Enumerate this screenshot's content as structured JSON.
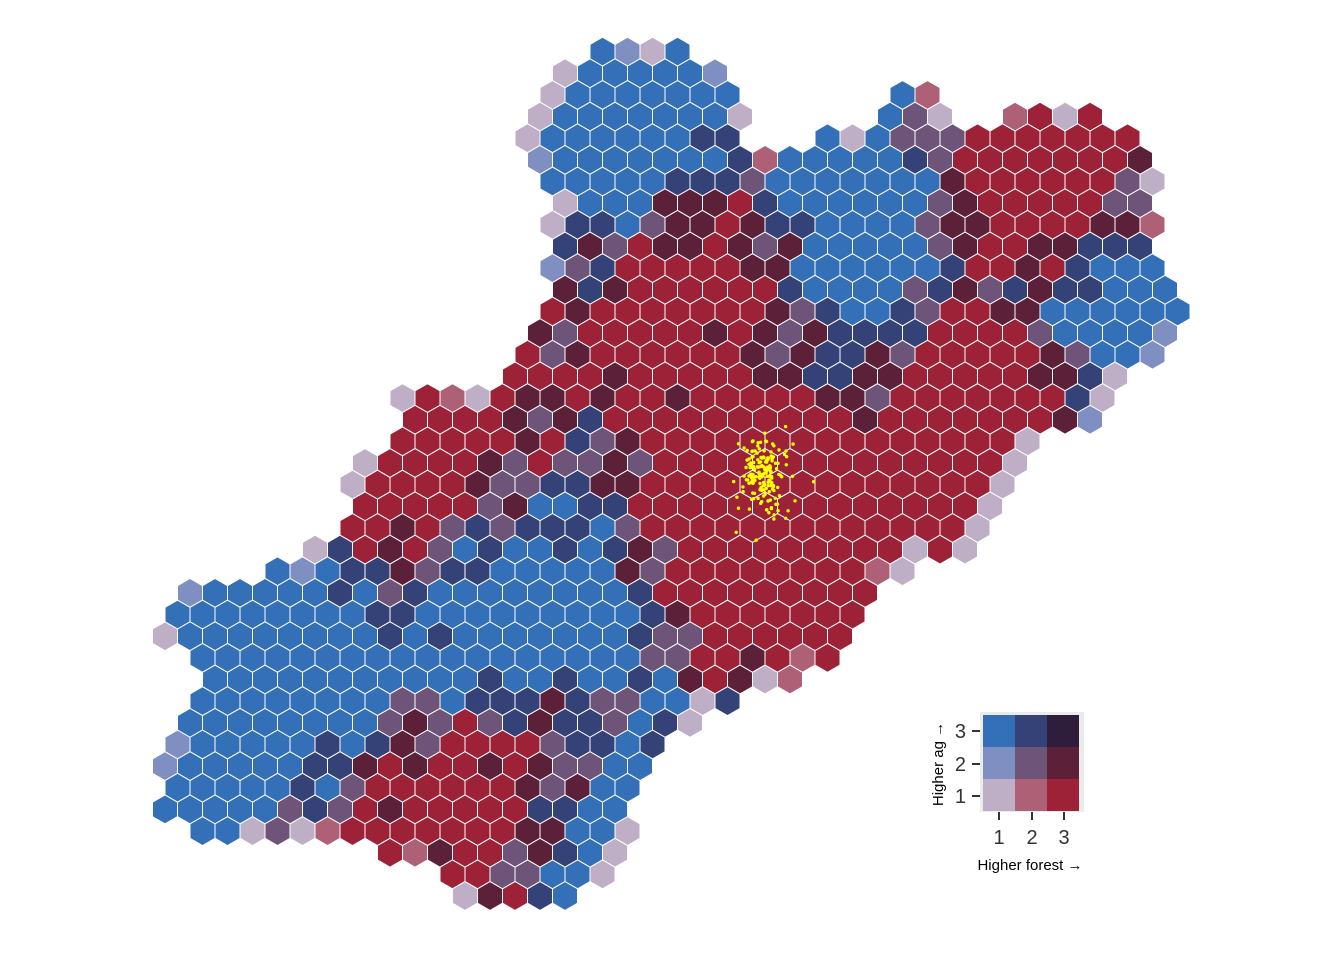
{
  "legend": {
    "x_label": "Higher forest →",
    "y_label": "Higher ag →",
    "x_ticks": [
      "1",
      "2",
      "3"
    ],
    "y_ticks": [
      "1",
      "2",
      "3"
    ],
    "palette": {
      "1-1": "#bfafc6",
      "2-1": "#ae6076",
      "3-1": "#9d2237",
      "1-2": "#7f8fc1",
      "2-2": "#6e5478",
      "3-2": "#5c2038",
      "1-3": "#3470b8",
      "2-3": "#344277",
      "3-3": "#2e1e3c"
    }
  },
  "colors": {
    "background": "#ffffff",
    "hex_border": "#ffffff",
    "points": "#ffff00"
  }
}
